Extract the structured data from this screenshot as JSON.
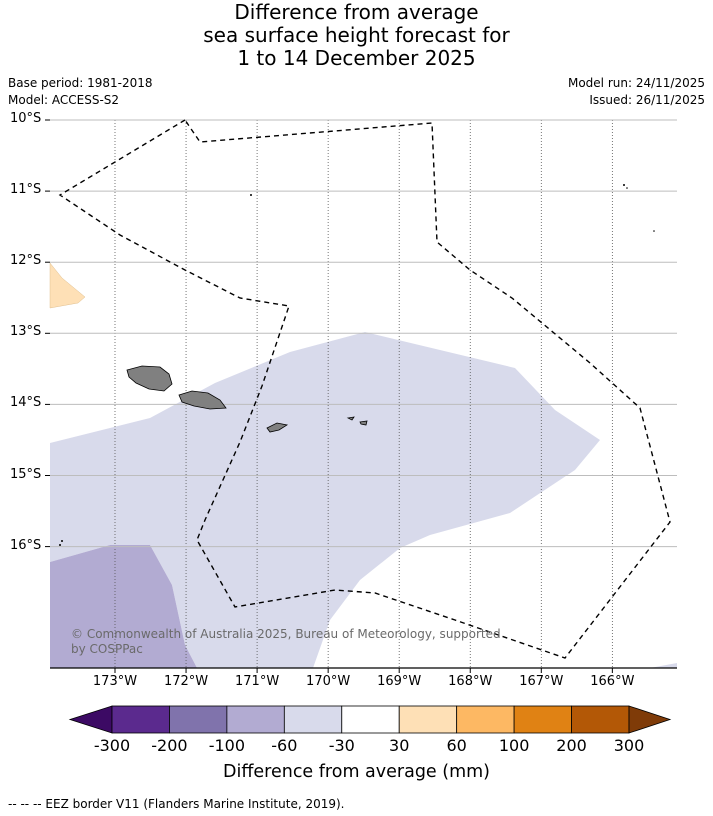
{
  "title": {
    "line1": "Difference from average",
    "line2": "sea surface height forecast for",
    "line3": "1 to 14 December 2025"
  },
  "meta": {
    "base_period": "Base period: 1981-2018",
    "model": "Model: ACCESS-S2",
    "model_run": "Model run: 24/11/2025",
    "issued": "Issued: 26/11/2025"
  },
  "chart_data": {
    "type": "heatmap",
    "title": "Difference from average sea surface height forecast for 1 to 14 December 2025",
    "lat_ticks": [
      "10°S",
      "11°S",
      "12°S",
      "13°S",
      "14°S",
      "15°S",
      "16°S"
    ],
    "lon_ticks": [
      "173°W",
      "172°W",
      "171°W",
      "170°W",
      "169°W",
      "168°W",
      "167°W",
      "166°W"
    ],
    "extent": {
      "lon_min": -173.9,
      "lon_max": -165.1,
      "lat_min": -17.7,
      "lat_max": -10.0
    },
    "colorbar": {
      "boundaries": [
        "-300",
        "-200",
        "-100",
        "-60",
        "-30",
        "30",
        "60",
        "100",
        "200",
        "300"
      ],
      "colors": [
        "#3c0a64",
        "#5b2a8e",
        "#8073ac",
        "#b2abd2",
        "#d8daeb",
        "#ffffff",
        "#fee0b6",
        "#fdb863",
        "#e08214",
        "#b35806",
        "#7f3b08"
      ],
      "label": "Difference from average (mm)"
    },
    "regions": [
      {
        "name": "-60 to -30 mm region",
        "category": "-60 to -30",
        "color": "#d8daeb"
      },
      {
        "name": "-100 to -60 mm region",
        "category": "-100 to -60",
        "color": "#b2abd2"
      },
      {
        "name": "30 to 60 mm region",
        "category": "30 to 60",
        "color": "#fee0b6"
      }
    ]
  },
  "copyright": "© Commonwealth of Australia 2025, Bureau of Meteorology, supported by COSPPac",
  "footer": "-- -- -- EEZ border V11 (Flanders Marine Institute, 2019)."
}
